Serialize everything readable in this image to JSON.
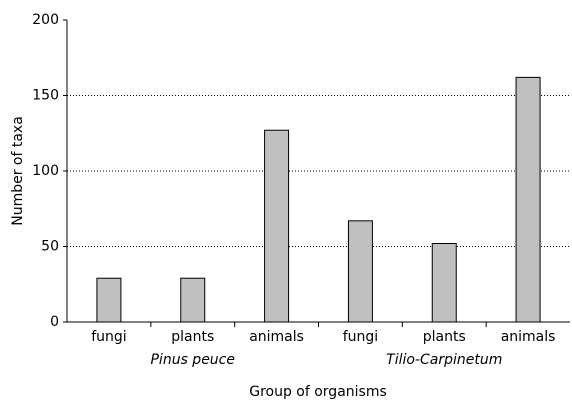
{
  "chart_data": {
    "type": "bar",
    "ylabel": "Number of taxa",
    "xlabel": "Group of organisms",
    "categories": [
      "fungi",
      "plants",
      "animals",
      "fungi",
      "plants",
      "animals"
    ],
    "groups": [
      "Pinus peuce",
      "Tilio-Carpinetum"
    ],
    "values": [
      29,
      29,
      127,
      67,
      52,
      162
    ],
    "color": "#c0c0c0",
    "ylim": [
      0,
      200
    ],
    "yticks": [
      0,
      50,
      100,
      150,
      200
    ],
    "grid": true
  }
}
